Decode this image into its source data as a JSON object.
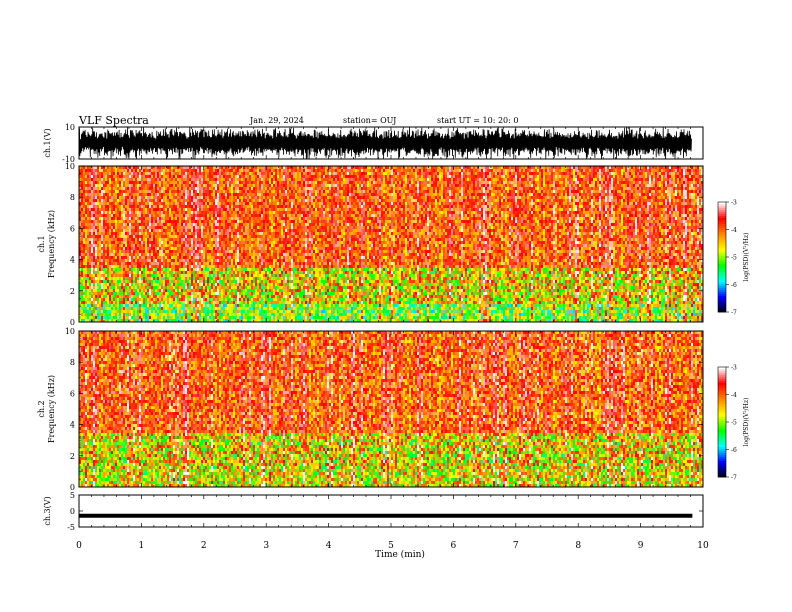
{
  "header": {
    "title": "VLF Spectra",
    "date": "Jan. 29, 2024",
    "station": "station= OUJ",
    "start_ut": "start UT =   10: 20: 0"
  },
  "chart_data": [
    {
      "type": "line",
      "panel": "ch1-waveform",
      "ylabel": "ch.1(V)",
      "ylim": [
        -10,
        10
      ],
      "yticks": [
        "10",
        "-10"
      ],
      "xlim": [
        0,
        10
      ]
    },
    {
      "type": "heatmap",
      "panel": "ch1-spectrogram",
      "ylabel": "ch.1\nFrequency (kHz)",
      "ylabel_lines": [
        "ch.1",
        "Frequency (kHz)"
      ],
      "ylim": [
        0,
        10
      ],
      "yticks": [
        "0",
        "2",
        "4",
        "6",
        "8",
        "10"
      ],
      "xlim": [
        0,
        10
      ],
      "colorbar": {
        "label": "log(PSD)(V²/Hz)",
        "range": [
          -7,
          -3
        ],
        "ticks": [
          "-3",
          "-4",
          "-5",
          "-6",
          "-7"
        ]
      }
    },
    {
      "type": "heatmap",
      "panel": "ch2-spectrogram",
      "ylabel": "ch.2\nFrequency (kHz)",
      "ylabel_lines": [
        "ch.2",
        "Frequency (kHz)"
      ],
      "ylim": [
        0,
        10
      ],
      "yticks": [
        "0",
        "2",
        "4",
        "6",
        "8",
        "10"
      ],
      "xlim": [
        0,
        10
      ],
      "colorbar": {
        "label": "log(PSD)(V²/Hz)",
        "range": [
          -7,
          -3
        ],
        "ticks": [
          "-3",
          "-4",
          "-5",
          "-6",
          "-7"
        ]
      }
    },
    {
      "type": "line",
      "panel": "ch3-waveform",
      "ylabel": "ch.3(V)",
      "ylim": [
        -5,
        5
      ],
      "yticks": [
        "5",
        "0",
        "-5"
      ],
      "x": [
        0,
        9.83
      ],
      "y": [
        -1.5,
        -1.5
      ],
      "xlim": [
        0,
        10
      ],
      "xticks": [
        "0",
        "1",
        "2",
        "3",
        "4",
        "5",
        "6",
        "7",
        "8",
        "9",
        "10"
      ],
      "xlabel": "Time (min)"
    }
  ],
  "colors": {
    "spectrum_scale": [
      "#000000",
      "#0000ff",
      "#00ffff",
      "#00ff00",
      "#ffff00",
      "#ff8800",
      "#ff0000",
      "#ffffff"
    ],
    "waveform": "#000000"
  }
}
